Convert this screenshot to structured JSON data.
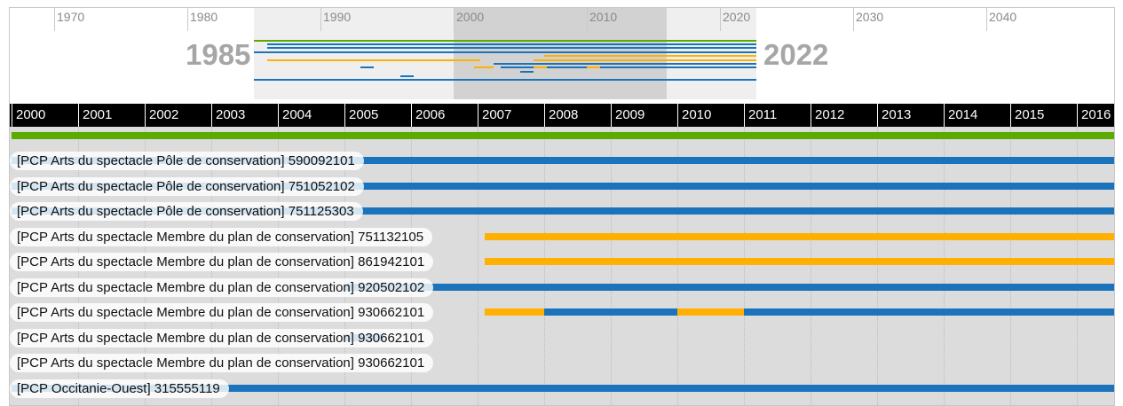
{
  "colors": {
    "blue": "#1a73bb",
    "orange": "#ffb000",
    "green": "#5aaa00",
    "header_bg": "#000000"
  },
  "overview": {
    "years": [
      "1970",
      "1980",
      "1990",
      "2000",
      "2010",
      "2020",
      "2030",
      "2040"
    ],
    "range_start_label": "1985",
    "range_end_label": "2022",
    "window_start_year": 2000,
    "window_end_year": 2016
  },
  "timeline": {
    "years": [
      "2000",
      "2001",
      "2002",
      "2003",
      "2004",
      "2005",
      "2006",
      "2007",
      "2008",
      "2009",
      "2010",
      "2011",
      "2012",
      "2013",
      "2014",
      "2015",
      "2016"
    ],
    "lanes": [
      {
        "label": "",
        "segments": [
          {
            "start": 2000,
            "end": 2016.6,
            "color": "green"
          }
        ]
      },
      {
        "label": "[PCP Arts du spectacle Pôle de conservation] 590092101",
        "segments": [
          {
            "start": 2000,
            "end": 2016.6,
            "color": "blue"
          }
        ]
      },
      {
        "label": "[PCP Arts du spectacle Pôle de conservation] 751052102",
        "segments": [
          {
            "start": 2000,
            "end": 2016.6,
            "color": "blue"
          }
        ]
      },
      {
        "label": "[PCP Arts du spectacle Pôle de conservation] 751125303",
        "segments": [
          {
            "start": 2000,
            "end": 2016.6,
            "color": "blue"
          }
        ]
      },
      {
        "label": "[PCP Arts du spectacle Membre du plan de conservation] 751132105",
        "segments": [
          {
            "start": 2007.1,
            "end": 2016.6,
            "color": "orange"
          }
        ]
      },
      {
        "label": "[PCP Arts du spectacle Membre du plan de conservation] 861942101",
        "segments": [
          {
            "start": 2007.1,
            "end": 2016.6,
            "color": "orange"
          }
        ]
      },
      {
        "label": "[PCP Arts du spectacle Membre du plan de conservation] 920502102",
        "segments": [
          {
            "start": 2005.0,
            "end": 2016.6,
            "color": "blue"
          }
        ]
      },
      {
        "label": "[PCP Arts du spectacle Membre du plan de conservation] 930662101",
        "segments": [
          {
            "start": 2007.1,
            "end": 2008.0,
            "color": "orange"
          },
          {
            "start": 2008.0,
            "end": 2010.0,
            "color": "blue"
          },
          {
            "start": 2010.0,
            "end": 2011.0,
            "color": "orange"
          },
          {
            "start": 2011.0,
            "end": 2016.6,
            "color": "blue"
          }
        ]
      },
      {
        "label": "[PCP Arts du spectacle Membre du plan de conservation] 930662101",
        "segments": [
          {
            "start": 2005.0,
            "end": 2005.6,
            "color": "blue"
          }
        ]
      },
      {
        "label": "[PCP Arts du spectacle Membre du plan de conservation] 930662101",
        "segments": []
      },
      {
        "label": "[PCP Occitanie-Ouest] 315555119",
        "segments": [
          {
            "start": 2000,
            "end": 2016.6,
            "color": "blue"
          }
        ]
      }
    ]
  }
}
